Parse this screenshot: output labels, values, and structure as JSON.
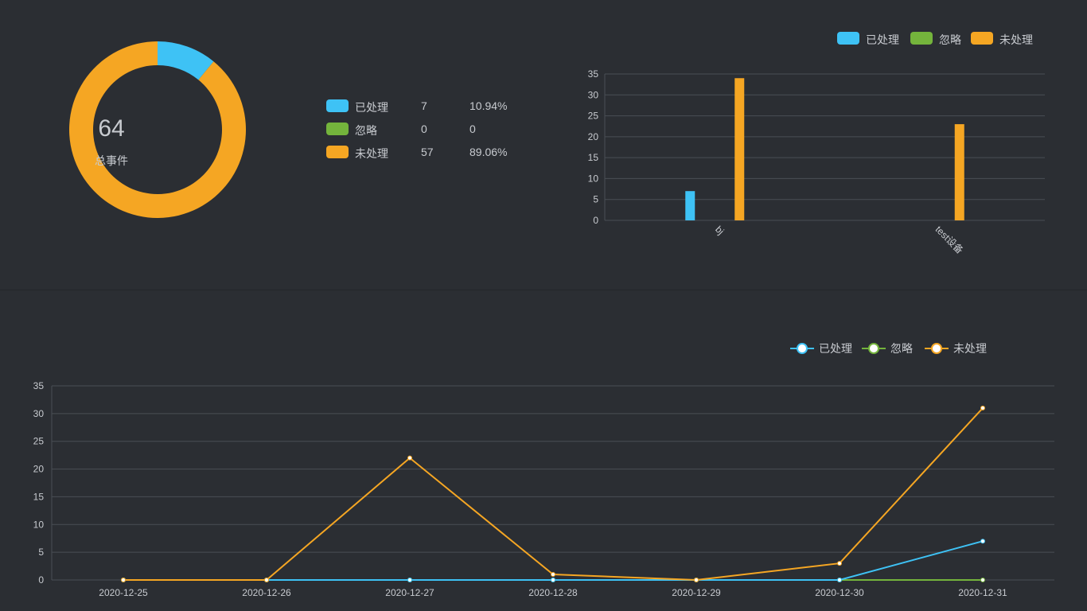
{
  "colors": {
    "handled": "#3ec2f5",
    "ignored": "#74b43c",
    "unhandled": "#f5a623",
    "grid": "#4a4e55",
    "axis_text": "#c8cbd0"
  },
  "donut": {
    "total": "64",
    "caption": "总事件"
  },
  "summary": [
    {
      "label": "已处理",
      "count": "7",
      "percent": "10.94%",
      "color": "#3ec2f5"
    },
    {
      "label": "忽略",
      "count": "0",
      "percent": "0",
      "color": "#74b43c"
    },
    {
      "label": "未处理",
      "count": "57",
      "percent": "89.06%",
      "color": "#f5a623"
    }
  ],
  "legend": [
    {
      "label": "已处理",
      "color": "#3ec2f5"
    },
    {
      "label": "忽略",
      "color": "#74b43c"
    },
    {
      "label": "未处理",
      "color": "#f5a623"
    }
  ],
  "chart_data": [
    {
      "type": "pie",
      "categories": [
        "已处理",
        "忽略",
        "未处理"
      ],
      "values": [
        7,
        0,
        57
      ],
      "center_text": "64",
      "center_caption": "总事件"
    },
    {
      "type": "bar",
      "categories": [
        "bj",
        "test设备"
      ],
      "series": [
        {
          "name": "已处理",
          "values": [
            7,
            0
          ]
        },
        {
          "name": "忽略",
          "values": [
            0,
            0
          ]
        },
        {
          "name": "未处理",
          "values": [
            34,
            23
          ]
        }
      ],
      "ylim": [
        0,
        35
      ],
      "yticks": [
        0,
        5,
        10,
        15,
        20,
        25,
        30,
        35
      ],
      "legend_position": "top-right",
      "grid": true
    },
    {
      "type": "line",
      "x": [
        "2020-12-25",
        "2020-12-26",
        "2020-12-27",
        "2020-12-28",
        "2020-12-29",
        "2020-12-30",
        "2020-12-31"
      ],
      "series": [
        {
          "name": "已处理",
          "values": [
            0,
            0,
            0,
            0,
            0,
            0,
            7
          ]
        },
        {
          "name": "忽略",
          "values": [
            0,
            0,
            0,
            0,
            0,
            0,
            0
          ]
        },
        {
          "name": "未处理",
          "values": [
            0,
            0,
            22,
            1,
            0,
            3,
            31
          ]
        }
      ],
      "ylim": [
        0,
        35
      ],
      "yticks": [
        0,
        5,
        10,
        15,
        20,
        25,
        30,
        35
      ],
      "legend_position": "top-right",
      "grid": true
    }
  ]
}
